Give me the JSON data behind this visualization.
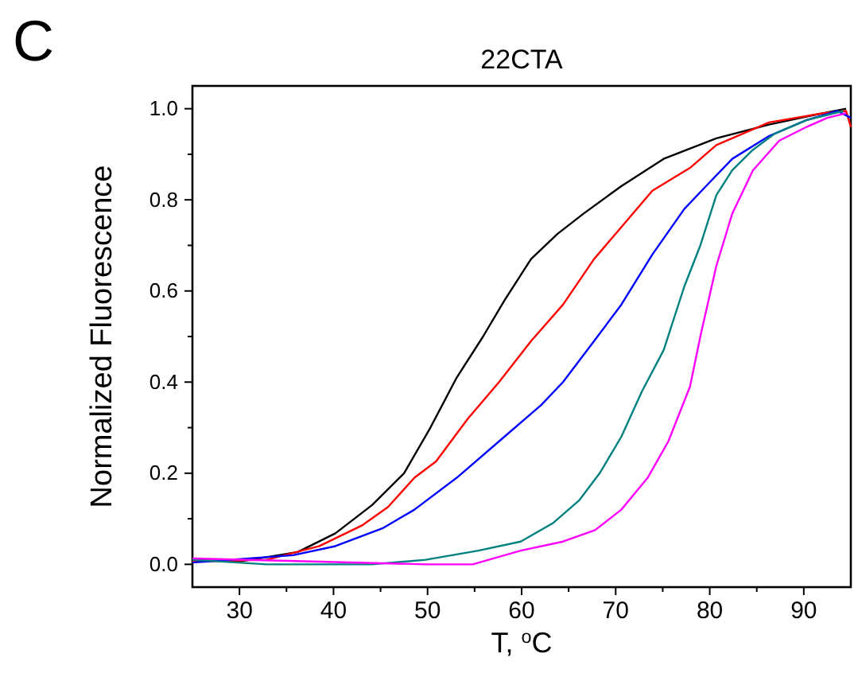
{
  "chart_data": {
    "type": "line",
    "title": "22CTA",
    "xlabel": "T, $^{o}$C",
    "ylabel": "Normalized Fluorescence",
    "annotations": [
      "C"
    ],
    "xlim": [
      25,
      95
    ],
    "ylim": [
      -0.05,
      1.05
    ],
    "xticks": [
      30,
      {
        "value": 35,
        "label": null
      },
      40,
      {
        "value": 45,
        "label": null
      },
      50,
      {
        "value": 55,
        "label": null
      },
      60,
      {
        "value": 65,
        "label": null
      },
      70,
      {
        "value": 75,
        "label": null
      },
      80,
      {
        "value": 85,
        "label": null
      },
      90
    ],
    "yticks": [
      {
        "value": 0,
        "label": "0.0"
      },
      {
        "value": 0.1,
        "label": null
      },
      {
        "value": 0.2,
        "label": "0.2"
      },
      {
        "value": 0.3,
        "label": null
      },
      {
        "value": 0.4,
        "label": "0.4"
      },
      {
        "value": 0.5,
        "label": null
      },
      {
        "value": 0.6,
        "label": "0.6"
      },
      {
        "value": 0.7,
        "label": null
      },
      {
        "value": 0.8,
        "label": "0.8"
      },
      {
        "value": 0.9,
        "label": null
      },
      {
        "value": 1.0,
        "label": "1.0"
      }
    ],
    "marker": "none",
    "line_style": "solid",
    "series": [
      {
        "color": "#000000",
        "x": [
          25,
          30,
          36.2,
          40.2,
          44.1,
          47.5,
          50.3,
          53.1,
          55.9,
          58.2,
          61,
          63.8,
          66.6,
          70.6,
          75.1,
          80.7,
          86.3,
          92,
          94.5
        ],
        "values": [
          0.01,
          0.006,
          0.027,
          0.068,
          0.13,
          0.2,
          0.3,
          0.41,
          0.5,
          0.58,
          0.67,
          0.725,
          0.77,
          0.83,
          0.89,
          0.935,
          0.965,
          0.99,
          1.0
        ]
      },
      {
        "color": "#ff0000",
        "x": [
          25,
          32.9,
          38.5,
          43,
          45.8,
          48.6,
          50.9,
          54.3,
          57.6,
          61,
          64.4,
          67.7,
          70.6,
          73.9,
          77.9,
          80.7,
          86.3,
          92,
          94.5,
          95
        ],
        "values": [
          0.006,
          0.01,
          0.04,
          0.085,
          0.126,
          0.19,
          0.226,
          0.32,
          0.4,
          0.49,
          0.57,
          0.67,
          0.74,
          0.82,
          0.87,
          0.92,
          0.97,
          0.99,
          0.995,
          0.96
        ]
      },
      {
        "color": "#0000ff",
        "x": [
          25,
          35.7,
          40.2,
          45.3,
          48.6,
          53.1,
          57.6,
          62.1,
          64.4,
          67.7,
          70.6,
          73.9,
          77.3,
          79.6,
          82.4,
          86.3,
          90.3,
          93.6,
          95
        ],
        "values": [
          0.004,
          0.02,
          0.04,
          0.08,
          0.12,
          0.19,
          0.27,
          0.35,
          0.4,
          0.49,
          0.57,
          0.68,
          0.78,
          0.83,
          0.89,
          0.94,
          0.975,
          0.995,
          0.98
        ]
      },
      {
        "color": "#008080",
        "x": [
          25,
          32.9,
          44.1,
          49.8,
          55.4,
          59.9,
          63.3,
          66.1,
          68.3,
          70.6,
          72.8,
          75.1,
          77.3,
          79,
          80.7,
          82.4,
          84.6,
          86.9,
          90.3,
          94.2
        ],
        "values": [
          0.01,
          0.0,
          0.0,
          0.01,
          0.03,
          0.05,
          0.09,
          0.14,
          0.2,
          0.28,
          0.38,
          0.47,
          0.61,
          0.7,
          0.81,
          0.865,
          0.91,
          0.945,
          0.975,
          0.995
        ]
      },
      {
        "color": "#ff00ff",
        "x": [
          25,
          38.5,
          49.8,
          54.8,
          59.9,
          64.4,
          67.8,
          70.6,
          73.4,
          75.6,
          77.9,
          79,
          80.7,
          82.4,
          84.6,
          87.4,
          90.3,
          92.5,
          94.5
        ],
        "values": [
          0.013,
          0.006,
          0.0,
          0.0,
          0.03,
          0.05,
          0.075,
          0.12,
          0.19,
          0.27,
          0.39,
          0.5,
          0.655,
          0.77,
          0.865,
          0.93,
          0.96,
          0.98,
          0.99
        ]
      }
    ]
  }
}
